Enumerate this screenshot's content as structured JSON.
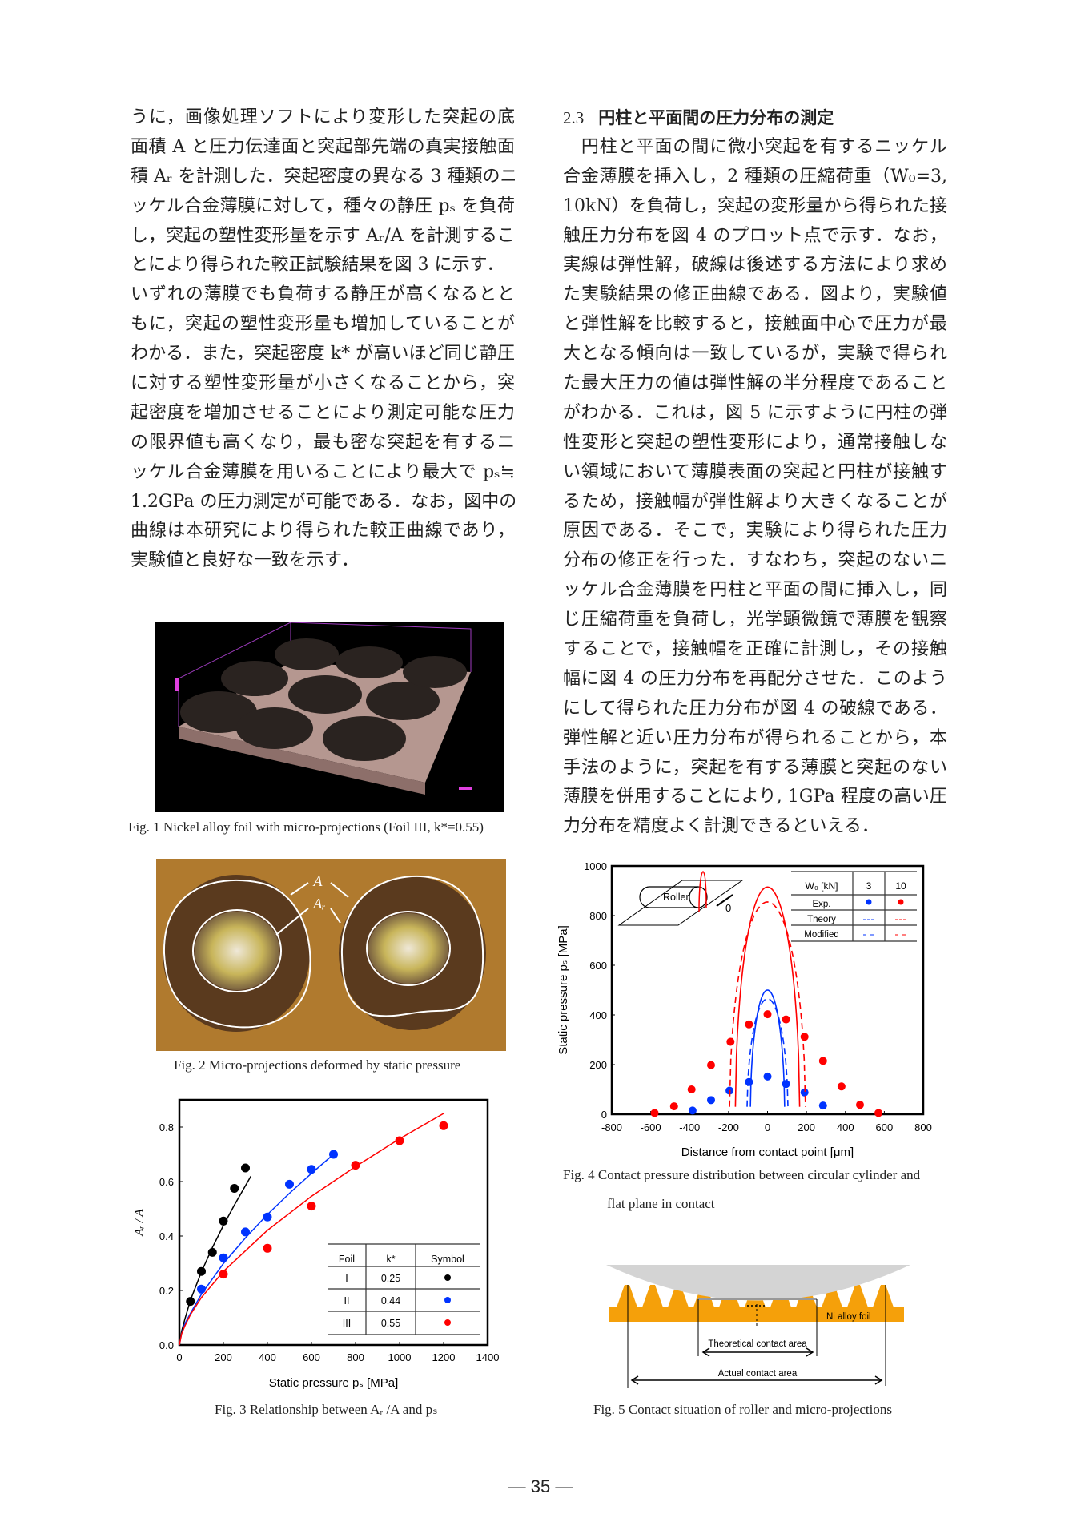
{
  "left_column": {
    "lines": [
      "うに，画像処理ソフトにより変形した突起の底",
      "面積 A と圧力伝達面と突起部先端の真実接触面",
      "積 Aᵣ を計測した．突起密度の異なる 3 種類のニ",
      "ッケル合金薄膜に対して，種々の静圧 pₛ を負荷",
      "し，突起の塑性変形量を示す Aᵣ/A を計測するこ",
      "とにより得られた較正試験結果を図 3 に示す．",
      "いずれの薄膜でも負荷する静圧が高くなるとと",
      "もに，突起の塑性変形量も増加していることが",
      "わかる．また，突起密度 k* が高いほど同じ静圧",
      "に対する塑性変形量が小さくなることから，突",
      "起密度を増加させることにより測定可能な圧力",
      "の限界値も高くなり，最も密な突起を有するニ",
      "ッケル合金薄膜を用いることにより最大で pₛ≒",
      "1.2GPa の圧力測定が可能である．なお，図中の",
      "曲線は本研究により得られた較正曲線であり，",
      "実験値と良好な一致を示す．"
    ]
  },
  "right_column": {
    "section_number": "2.3",
    "section_title": "円柱と平面間の圧力分布の測定",
    "lines": [
      "　円柱と平面の間に微小突起を有するニッケル",
      "合金薄膜を挿入し，2 種類の圧縮荷重（W₀=3,",
      "10kN）を負荷し，突起の変形量から得られた接",
      "触圧力分布を図 4 のプロット点で示す．なお，",
      "実線は弾性解，破線は後述する方法により求め",
      "た実験結果の修正曲線である．図より，実験値",
      "と弾性解を比較すると，接触面中心で圧力が最",
      "大となる傾向は一致しているが，実験で得られ",
      "た最大圧力の値は弾性解の半分程度であること",
      "がわかる．これは，図 5 に示すように円柱の弾",
      "性変形と突起の塑性変形により，通常接触しな",
      "い領域において薄膜表面の突起と円柱が接触す",
      "るため，接触幅が弾性解より大きくなることが",
      "原因である．そこで，実験により得られた圧力",
      "分布の修正を行った．すなわち，突起のないニ",
      "ッケル合金薄膜を円柱と平面の間に挿入し，同",
      "じ圧縮荷重を負荷し，光学顕微鏡で薄膜を観察",
      "することで，接触幅を正確に計測し，その接触",
      "幅に図 4 の圧力分布を再配分させた．このよう",
      "にして得られた圧力分布が図 4 の破線である．",
      "弾性解と近い圧力分布が得られることから，本",
      "手法のように，突起を有する薄膜と突起のない",
      "薄膜を併用することにより, 1GPa 程度の高い圧",
      "力分布を精度よく計測できるといえる．"
    ]
  },
  "figures": {
    "fig1": {
      "caption": "Fig. 1 Nickel alloy foil with micro-projections (Foil III, k*=0.55)"
    },
    "fig2": {
      "caption": "Fig. 2 Micro-projections deformed by static pressure",
      "label_A": "A",
      "label_Ar": "Aᵣ"
    },
    "fig3": {
      "caption": "Fig. 3 Relationship between Aᵣ /A and pₛ"
    },
    "fig4": {
      "caption_line1": "Fig. 4 Contact pressure distribution between circular cylinder and",
      "caption_line2": "flat plane in contact",
      "inset_label": "Roller",
      "inset_axis": "0"
    },
    "fig5": {
      "caption": "Fig. 5 Contact situation of roller and micro-projections",
      "foil_label": "Ni alloy foil",
      "theoretical_label": "Theoretical contact area",
      "actual_label": "Actual contact area",
      "roller_color": "#d4d4d4",
      "foil_color": "#f5a00a"
    }
  },
  "chart_data": [
    {
      "type": "scatter",
      "xlabel": "Static pressure pₛ [MPa]",
      "ylabel": "Aᵣ / A",
      "xlim": [
        0,
        1400
      ],
      "ylim": [
        0,
        0.9
      ],
      "xticks": [
        "0",
        "200",
        "400",
        "600",
        "800",
        "1000",
        "1200",
        "1400"
      ],
      "yticks": [
        "0.0",
        "0.2",
        "0.4",
        "0.6",
        "0.8"
      ],
      "grid": false,
      "legend_table": {
        "headers": [
          "Foil",
          "k*",
          "Symbol"
        ],
        "rows": [
          {
            "foil": "I",
            "k": "0.25",
            "color": "#000000"
          },
          {
            "foil": "II",
            "k": "0.44",
            "color": "#0033ff"
          },
          {
            "foil": "III",
            "k": "0.55",
            "color": "#ff0000"
          }
        ],
        "placement": "bottom-right"
      },
      "series": [
        {
          "name": "I",
          "color": "#000000",
          "x": [
            50,
            100,
            150,
            200,
            250,
            300
          ],
          "y": [
            0.16,
            0.27,
            0.34,
            0.455,
            0.575,
            0.65
          ],
          "curve_x": [
            0,
            10,
            25,
            50,
            100,
            150,
            200,
            250,
            325
          ],
          "curve_y": [
            0,
            0.05,
            0.095,
            0.164,
            0.268,
            0.358,
            0.439,
            0.514,
            0.62
          ]
        },
        {
          "name": "II",
          "color": "#0033ff",
          "x": [
            100,
            200,
            300,
            400,
            500,
            600,
            700
          ],
          "y": [
            0.205,
            0.32,
            0.415,
            0.47,
            0.59,
            0.645,
            0.7
          ],
          "curve_x": [
            0,
            10,
            25,
            50,
            100,
            200,
            300,
            400,
            500,
            600,
            700
          ],
          "curve_y": [
            0,
            0.041,
            0.078,
            0.116,
            0.186,
            0.299,
            0.393,
            0.479,
            0.557,
            0.63,
            0.7
          ]
        },
        {
          "name": "III",
          "color": "#ff0000",
          "x": [
            200,
            400,
            600,
            800,
            1000,
            1200
          ],
          "y": [
            0.26,
            0.355,
            0.51,
            0.66,
            0.75,
            0.805
          ],
          "curve_x": [
            0,
            10,
            25,
            50,
            100,
            200,
            400,
            600,
            800,
            1000,
            1200
          ],
          "curve_y": [
            0,
            0.041,
            0.07,
            0.111,
            0.174,
            0.27,
            0.421,
            0.546,
            0.655,
            0.757,
            0.85
          ]
        }
      ]
    },
    {
      "type": "scatter",
      "xlabel": "Distance from contact point [μm]",
      "ylabel": "Static pressure pₛ [MPa]",
      "xlim": [
        -800,
        800
      ],
      "ylim": [
        0,
        1000
      ],
      "xticks": [
        "-800",
        "-600",
        "-400",
        "-200",
        "0",
        "200",
        "400",
        "600",
        "800"
      ],
      "yticks": [
        "0",
        "200",
        "400",
        "600",
        "800",
        "1000"
      ],
      "grid": false,
      "legend_table": {
        "header": [
          "W₀ [kN]",
          "3",
          "10"
        ],
        "rows": [
          "Exp.",
          "Theory",
          "Modified"
        ],
        "theory_mark": "---",
        "modified_mark": "- -",
        "placement": "top-right"
      },
      "series": [
        {
          "name": "3",
          "color": "#0033ff",
          "exp_x": [
            -385,
            -290,
            -195,
            -95,
            0,
            95,
            190,
            285
          ],
          "exp_y": [
            15,
            57,
            95,
            130,
            152,
            122,
            88,
            35
          ],
          "theory": {
            "peak": 500,
            "half_width": 88
          },
          "modified": {
            "peak": 465,
            "half_width": 105
          }
        },
        {
          "name": "10",
          "color": "#ff0000",
          "exp_x": [
            -580,
            -480,
            -390,
            -290,
            -190,
            -95,
            0,
            95,
            190,
            285,
            380,
            475,
            570
          ],
          "exp_y": [
            5,
            32,
            100,
            198,
            292,
            362,
            403,
            382,
            312,
            215,
            112,
            38,
            5
          ],
          "theory": {
            "peak": 915,
            "half_width": 165
          },
          "modified": {
            "peak": 855,
            "half_width": 195
          }
        }
      ]
    }
  ],
  "page_number": "— 35 —"
}
